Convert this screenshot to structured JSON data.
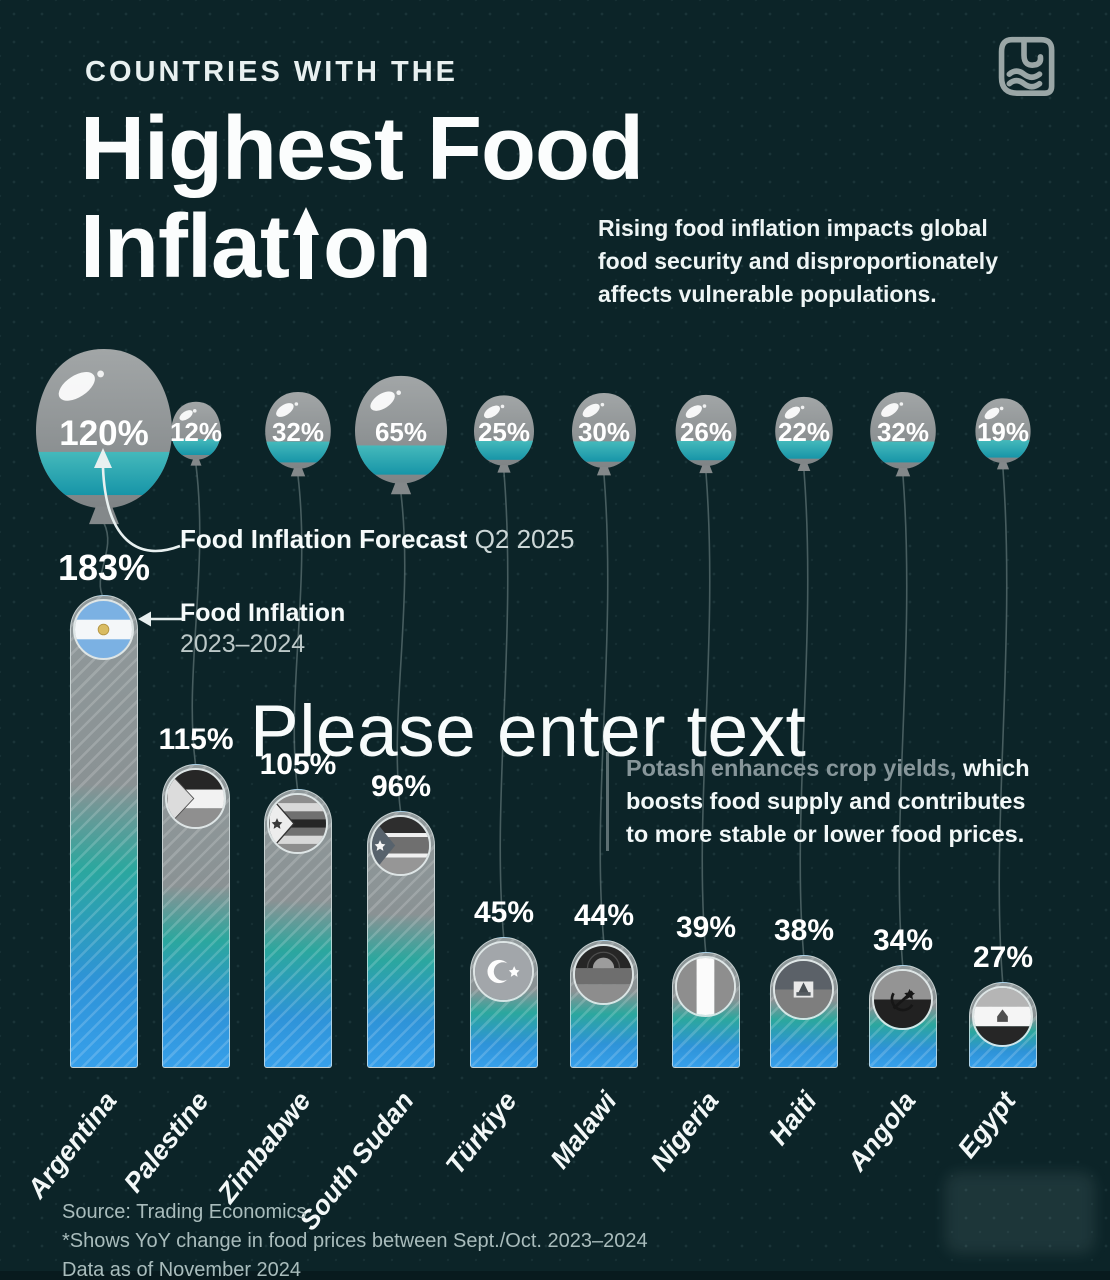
{
  "colors": {
    "background": "#0c2428",
    "balloon_grey": "#909394",
    "accent_teal": "#2ba79e",
    "accent_blue": "#2e93d8",
    "text_white": "#f2f7f7",
    "text_muted": "#a9bcbc"
  },
  "header": {
    "kicker": "COUNTRIES WITH THE",
    "title_line1": "Highest Food",
    "title_line2_before_arrow": "Inflat",
    "title_line2_after_arrow": "on",
    "subtitle": "Rising food inflation impacts global food security and disproportionately affects vulnerable populations."
  },
  "callouts": {
    "forecast_bold": "Food Inflation Forecast",
    "forecast_period": "Q2 2025",
    "history_bold": "Food Inflation",
    "history_period": "2023–2024",
    "overlay_text": "Please enter text",
    "potash_highlight": "Potash enhances crop yields,",
    "potash_rest": " which boosts food supply and contributes to more stable or lower food prices."
  },
  "chart_data": {
    "type": "bar",
    "unit": "%",
    "categories": [
      "Argentina",
      "Palestine",
      "Zimbabwe",
      "South Sudan",
      "Türkiye",
      "Malawi",
      "Nigeria",
      "Haiti",
      "Angola",
      "Egypt"
    ],
    "series": [
      {
        "name": "Food Inflation 2023–2024",
        "values": [
          183,
          115,
          105,
          96,
          45,
          44,
          39,
          38,
          34,
          27
        ]
      },
      {
        "name": "Food Inflation Forecast Q2 2025",
        "values": [
          120,
          12,
          32,
          65,
          25,
          30,
          26,
          22,
          32,
          19
        ]
      }
    ],
    "flags": [
      "argentina",
      "palestine",
      "zimbabwe",
      "south-sudan",
      "turkiye",
      "malawi",
      "nigeria",
      "haiti",
      "angola",
      "egypt"
    ],
    "legend_position": "annotated-arrows",
    "grid": false,
    "ylim": [
      0,
      190
    ]
  },
  "footer": {
    "source": "Source: Trading Economics",
    "note1": "*Shows YoY change in food prices between Sept./Oct. 2023–2024",
    "note2": "Data as of November 2024"
  }
}
